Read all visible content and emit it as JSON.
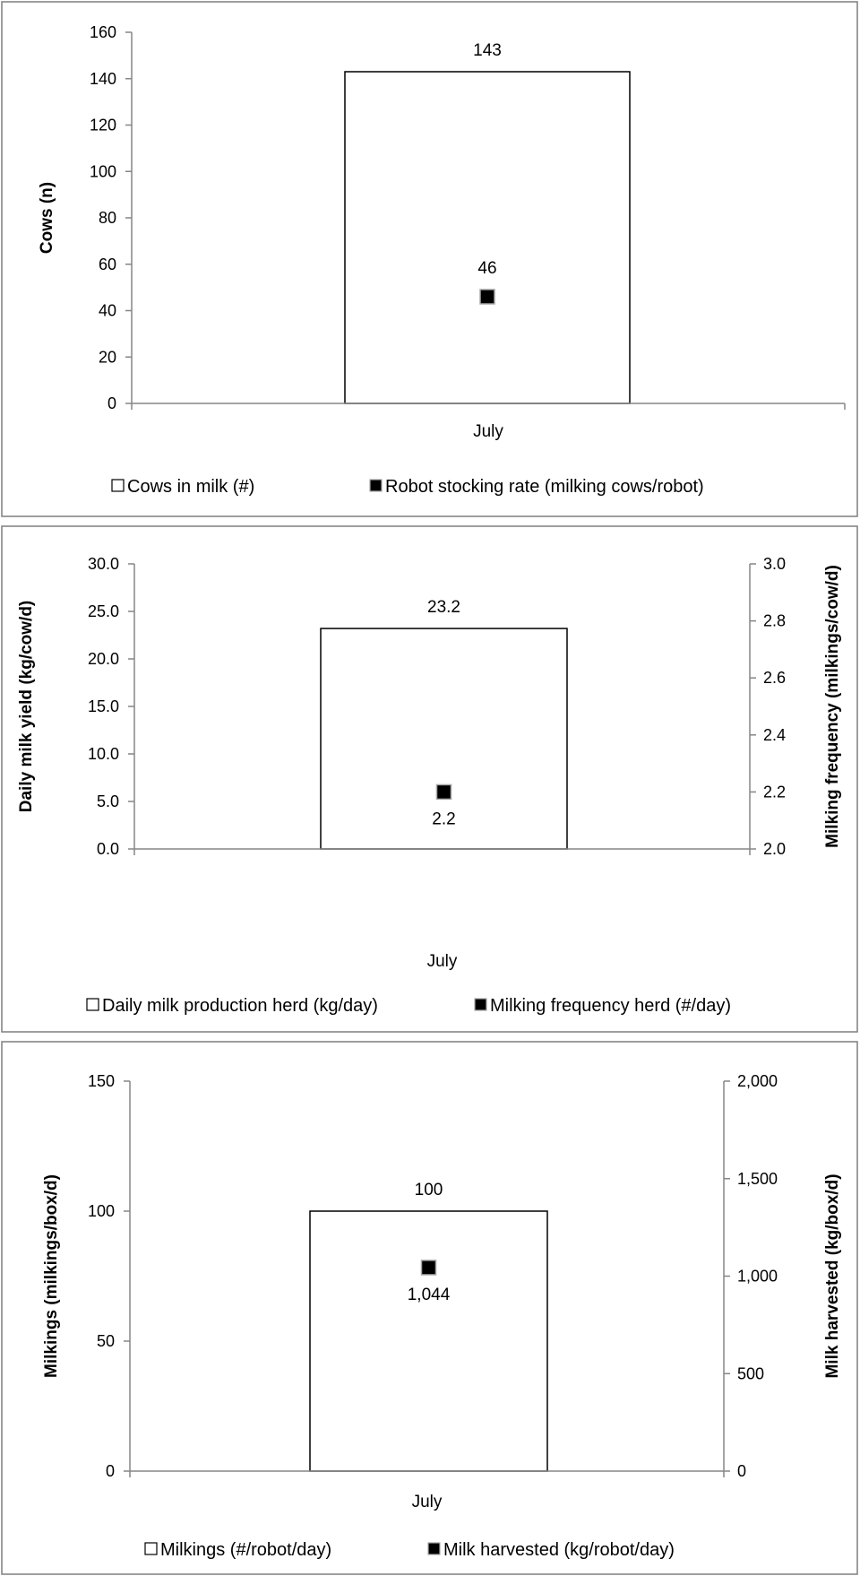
{
  "chart_data": [
    {
      "type": "bar",
      "categories": [
        "July"
      ],
      "series": [
        {
          "name": "Cows in milk (#)",
          "kind": "bar",
          "axis": "left",
          "values": [
            143
          ],
          "labels": [
            "143"
          ]
        },
        {
          "name": "Robot stocking rate (milking cows/robot)",
          "kind": "marker",
          "axis": "left",
          "values": [
            46
          ],
          "labels": [
            "46"
          ]
        }
      ],
      "ylabel": "Cows (n)",
      "ylim": [
        0,
        160
      ],
      "yticks": [
        "0",
        "20",
        "40",
        "60",
        "80",
        "100",
        "120",
        "140",
        "160"
      ],
      "legend": "bottom",
      "grid": false
    },
    {
      "type": "bar",
      "categories": [
        "July"
      ],
      "series": [
        {
          "name": "Daily milk production herd (kg/day)",
          "kind": "bar",
          "axis": "left",
          "values": [
            23.2
          ],
          "labels": [
            "23.2"
          ]
        },
        {
          "name": "Milking frequency herd (#/day)",
          "kind": "marker",
          "axis": "right",
          "values": [
            2.2
          ],
          "labels": [
            "2.2"
          ]
        }
      ],
      "ylabel": "Daily milk yield (kg/cow/d)",
      "y2label": "Milking frequency (milkings/cow/d)",
      "ylim": [
        0,
        30
      ],
      "y2lim": [
        2.0,
        3.0
      ],
      "yticks": [
        "0.0",
        "5.0",
        "10.0",
        "15.0",
        "20.0",
        "25.0",
        "30.0"
      ],
      "y2ticks": [
        "2.0",
        "2.2",
        "2.4",
        "2.6",
        "2.8",
        "3.0"
      ],
      "legend": "bottom",
      "grid": false
    },
    {
      "type": "bar",
      "categories": [
        "July"
      ],
      "series": [
        {
          "name": "Milkings (#/robot/day)",
          "kind": "bar",
          "axis": "left",
          "values": [
            100
          ],
          "labels": [
            "100"
          ]
        },
        {
          "name": "Milk harvested (kg/robot/day)",
          "kind": "marker",
          "axis": "right",
          "values": [
            1044
          ],
          "labels": [
            "1,044"
          ]
        }
      ],
      "ylabel": "Milkings (milkings/box/d)",
      "y2label": "Milk harvested (kg/box/d)",
      "ylim": [
        0,
        150
      ],
      "y2lim": [
        0,
        2000
      ],
      "yticks": [
        "0",
        "50",
        "100",
        "150"
      ],
      "y2ticks": [
        "0",
        "500",
        "1,000",
        "1,500",
        "2,000"
      ],
      "legend": "bottom",
      "grid": false
    }
  ]
}
